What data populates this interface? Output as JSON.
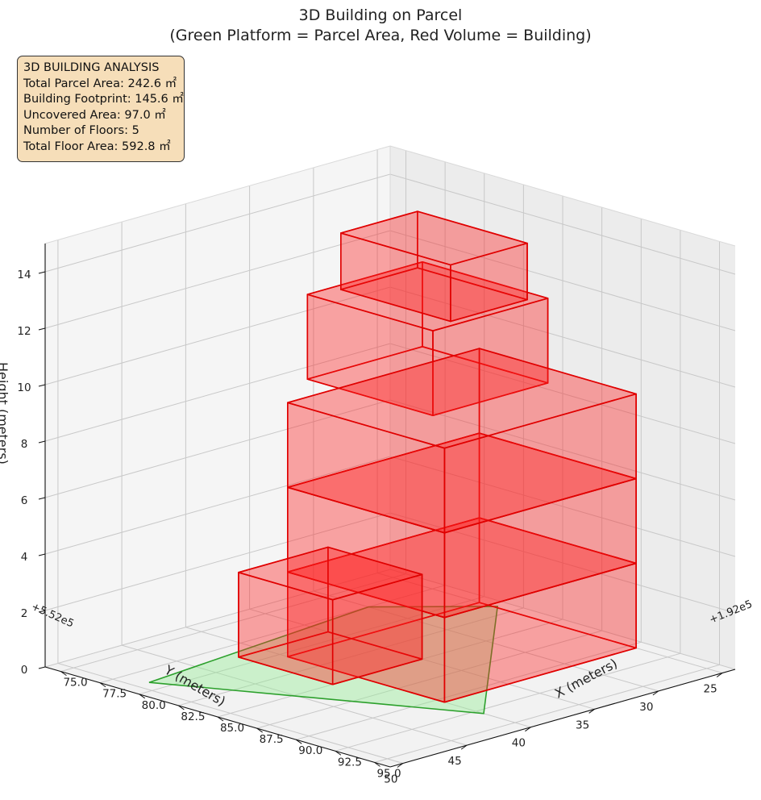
{
  "chart_data": {
    "type": "3d-box",
    "title": "3D Building on Parcel",
    "subtitle": "(Green Platform = Parcel Area, Red Volume = Building)",
    "xlabel": "X (meters)",
    "ylabel": "Y (meters)",
    "zlabel": "Height (meters)",
    "x_offset": "+1.92e5",
    "y_offset": "+5.52e5",
    "x_ticks": [
      "75.0",
      "77.5",
      "80.0",
      "82.5",
      "85.0",
      "87.5",
      "90.0",
      "92.5",
      "95.0"
    ],
    "y_ticks": [
      "25",
      "30",
      "35",
      "40",
      "45",
      "50"
    ],
    "z_ticks": [
      "0",
      "2",
      "4",
      "6",
      "8",
      "10",
      "12",
      "14"
    ],
    "xlim": [
      74,
      96
    ],
    "ylim": [
      24,
      51
    ],
    "zlim": [
      0,
      15
    ],
    "grid": true,
    "colors": {
      "parcel": "#2ca02c",
      "parcel_fill": "#90ee90",
      "building": "#e00000",
      "building_fill": "#ff2020",
      "info_bg": "#f6deb9"
    },
    "parcel_polygon": [
      [
        77.5,
        30.0
      ],
      [
        79.0,
        49.0
      ],
      [
        93.0,
        40.0
      ],
      [
        81.5,
        24.8
      ]
    ],
    "boxes": [
      {
        "x": [
          80.5,
          90.5
        ],
        "y": [
          25.0,
          40.0
        ],
        "z": [
          0.0,
          3.0
        ],
        "alpha": 0.4
      },
      {
        "x": [
          80.5,
          90.5
        ],
        "y": [
          25.0,
          40.0
        ],
        "z": [
          3.0,
          6.0
        ],
        "alpha": 0.4
      },
      {
        "x": [
          80.5,
          90.5
        ],
        "y": [
          25.0,
          40.0
        ],
        "z": [
          6.0,
          9.0
        ],
        "alpha": 0.4
      },
      {
        "x": [
          79.0,
          85.0
        ],
        "y": [
          35.0,
          42.0
        ],
        "z": [
          0.0,
          3.0
        ],
        "alpha": 0.4
      },
      {
        "x": [
          78.5,
          86.5
        ],
        "y": [
          27.0,
          36.0
        ],
        "z": [
          9.0,
          12.0
        ],
        "alpha": 0.4
      },
      {
        "x": [
          79.0,
          86.0
        ],
        "y": [
          28.0,
          34.0
        ],
        "z": [
          12.0,
          14.0
        ],
        "alpha": 0.4
      }
    ]
  },
  "info": {
    "heading": "3D BUILDING ANALYSIS",
    "lines": [
      "Total Parcel Area: 242.6 ㎡",
      "Building Footprint: 145.6 ㎡",
      "Uncovered Area: 97.0 ㎡",
      "Number of Floors: 5",
      "Total Floor Area: 592.8 ㎡"
    ]
  }
}
